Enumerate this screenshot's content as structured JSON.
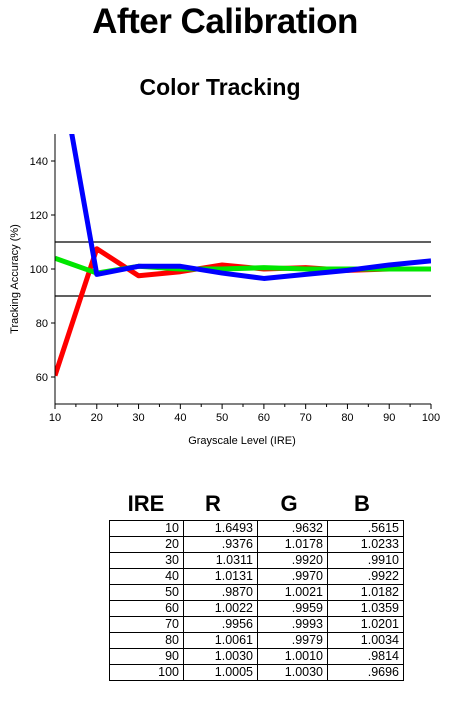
{
  "page": {
    "title": "After Calibration"
  },
  "chart_data": {
    "type": "line",
    "title": "Color Tracking",
    "xlabel": "Grayscale Level (IRE)",
    "ylabel": "Tracking Accuracy (%)",
    "xlim": [
      10,
      100
    ],
    "ylim": [
      50,
      150
    ],
    "x_ticks": [
      10,
      20,
      30,
      40,
      50,
      60,
      70,
      80,
      90,
      100
    ],
    "y_ticks": [
      60,
      80,
      100,
      120,
      140
    ],
    "reference_lines": [
      110,
      90
    ],
    "grid": false,
    "x": [
      10,
      20,
      30,
      40,
      50,
      60,
      70,
      80,
      90,
      100
    ],
    "series": [
      {
        "color": "#ff0000",
        "values": [
          60.5,
          107.5,
          97.5,
          99,
          101.5,
          100,
          100.5,
          99.5,
          100,
          100
        ]
      },
      {
        "color": "#00e600",
        "values": [
          104,
          98.5,
          101,
          100,
          100,
          100.5,
          100,
          100,
          100,
          100
        ]
      },
      {
        "color": "#0000ff",
        "values": [
          185,
          98,
          101,
          101,
          98.5,
          96.5,
          98,
          99.5,
          101.5,
          103
        ]
      }
    ]
  },
  "table": {
    "headers": [
      "IRE",
      "R",
      "G",
      "B"
    ],
    "rows": [
      [
        "10",
        "1.6493",
        ".9632",
        ".5615"
      ],
      [
        "20",
        ".9376",
        "1.0178",
        "1.0233"
      ],
      [
        "30",
        "1.0311",
        ".9920",
        ".9910"
      ],
      [
        "40",
        "1.0131",
        ".9970",
        ".9922"
      ],
      [
        "50",
        ".9870",
        "1.0021",
        "1.0182"
      ],
      [
        "60",
        "1.0022",
        ".9959",
        "1.0359"
      ],
      [
        "70",
        ".9956",
        ".9993",
        "1.0201"
      ],
      [
        "80",
        "1.0061",
        ".9979",
        "1.0034"
      ],
      [
        "90",
        "1.0030",
        "1.0010",
        ".9814"
      ],
      [
        "100",
        "1.0005",
        "1.0030",
        ".9696"
      ]
    ]
  }
}
